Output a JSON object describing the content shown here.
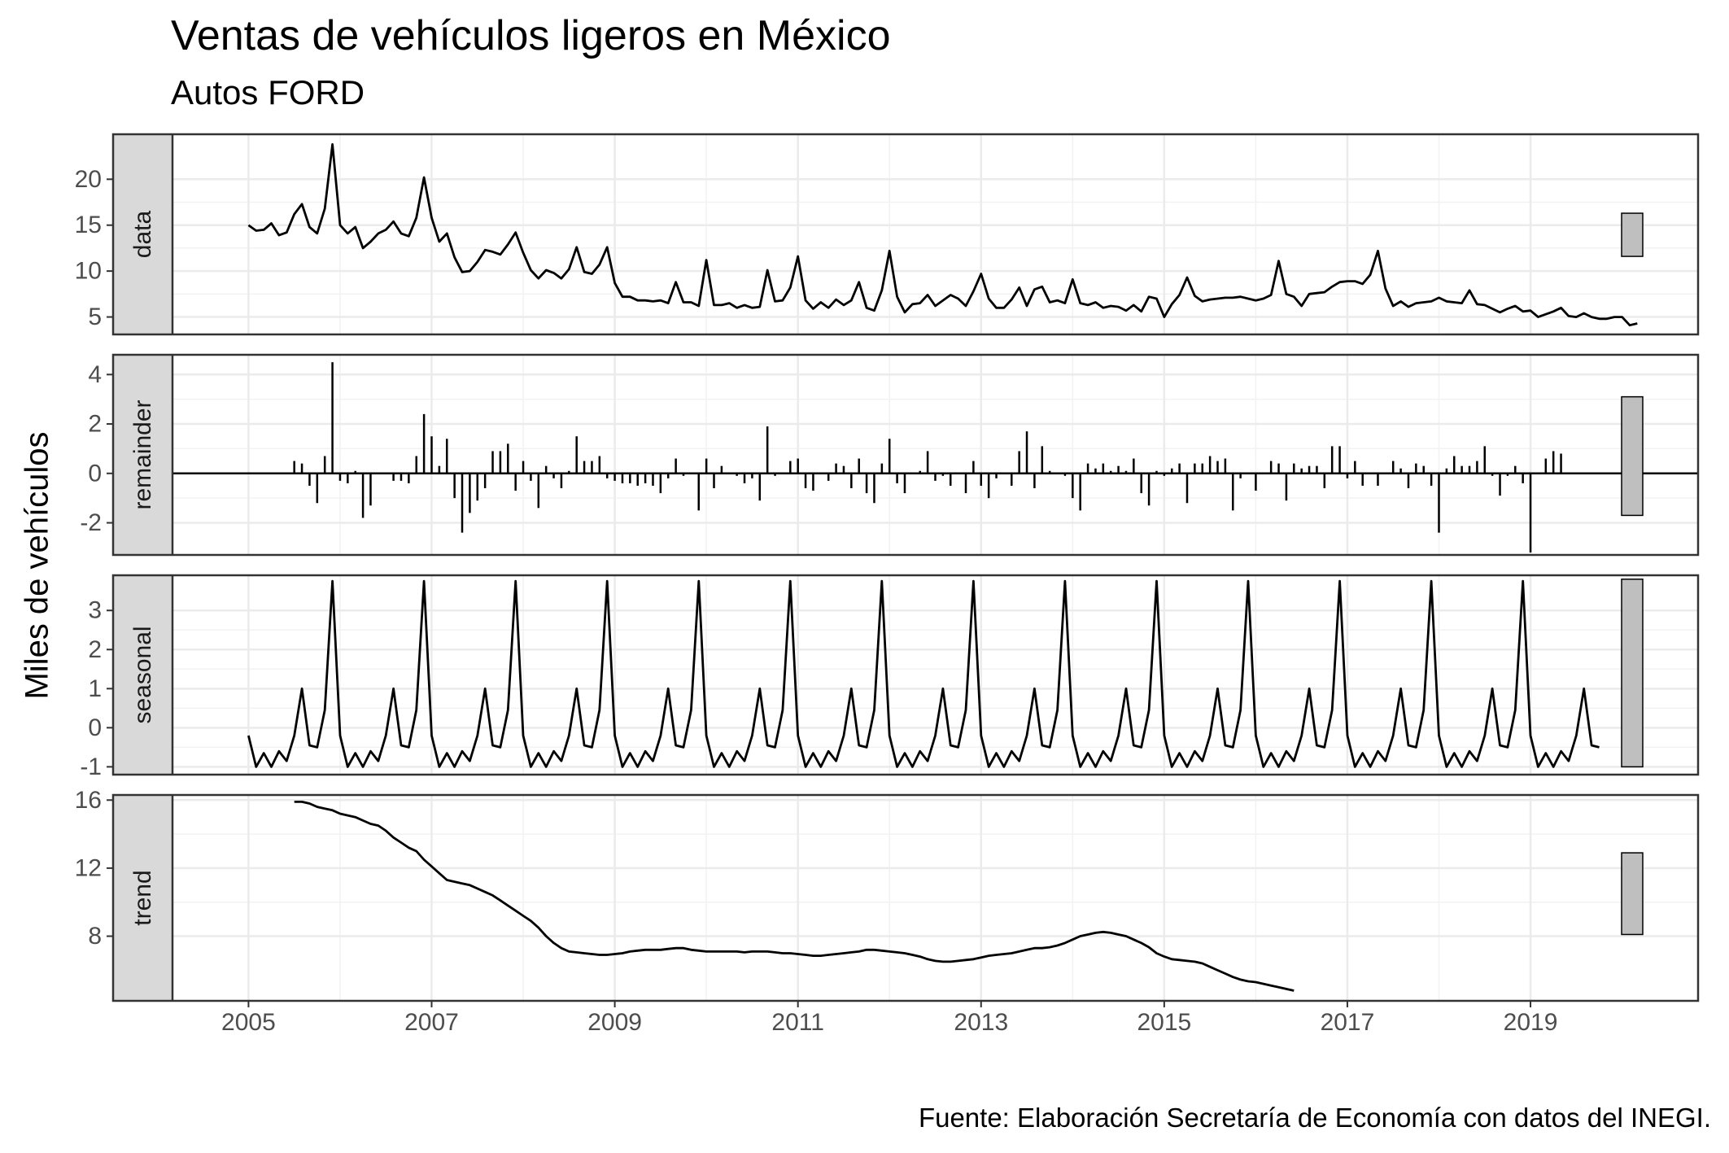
{
  "chart_data": {
    "type": "line",
    "title": "Ventas de vehículos ligeros en México",
    "subtitle": "Autos FORD",
    "ylabel": "Miles de vehículos",
    "xlabel": "",
    "caption": "Fuente: Elaboración Secretaría de Economía con datos del INEGI.",
    "x_start": 2005,
    "x_step": 0.0833333,
    "xlim": [
      2004.17,
      2020.83
    ],
    "x_ticks": [
      2005,
      2007,
      2009,
      2011,
      2013,
      2015,
      2017,
      2019
    ],
    "x_tick_labels": [
      "2005",
      "2007",
      "2009",
      "2011",
      "2013",
      "2015",
      "2017",
      "2019"
    ],
    "grid": true,
    "panels": [
      {
        "name": "data",
        "type": "line",
        "ylim": [
          3.1,
          24.9
        ],
        "y_ticks": [
          5,
          10,
          15,
          20
        ],
        "y_tick_labels": [
          "5",
          "10",
          "15",
          "20"
        ],
        "range_bar": [
          11.6,
          16.3
        ],
        "values": [
          15,
          14.4,
          14.5,
          15.2,
          13.9,
          14.2,
          16.2,
          17.3,
          14.8,
          14.1,
          16.8,
          23.8,
          15,
          14.1,
          14.8,
          12.5,
          13.2,
          14.1,
          14.5,
          15.4,
          14.1,
          13.8,
          15.8,
          20.2,
          15.8,
          13.2,
          14.1,
          11.5,
          9.9,
          10.0,
          11.0,
          12.3,
          12.1,
          11.8,
          12.9,
          14.2,
          12.0,
          10.1,
          9.2,
          10.1,
          9.8,
          9.2,
          10.2,
          12.6,
          9.9,
          9.7,
          10.7,
          12.6,
          8.7,
          7.2,
          7.2,
          6.8,
          6.8,
          6.7,
          6.8,
          6.5,
          8.8,
          6.6,
          6.6,
          6.2,
          11.2,
          6.3,
          6.3,
          6.5,
          6.0,
          6.3,
          6.0,
          6.1,
          10.1,
          6.7,
          6.8,
          8.2,
          11.6,
          6.8,
          5.9,
          6.6,
          6.0,
          6.9,
          6.3,
          6.8,
          8.8,
          6.0,
          5.7,
          7.9,
          12.2,
          7.2,
          5.5,
          6.4,
          6.5,
          7.4,
          6.2,
          6.8,
          7.4,
          7.0,
          6.2,
          7.8,
          9.7,
          7.0,
          6.0,
          6.0,
          6.9,
          8.2,
          6.2,
          8.0,
          8.3,
          6.6,
          6.8,
          6.5,
          9.1,
          6.5,
          6.3,
          6.6,
          6.0,
          6.2,
          6.1,
          5.7,
          6.3,
          5.6,
          7.2,
          7.0,
          5.0,
          6.4,
          7.4,
          9.3,
          7.3,
          6.7,
          6.9,
          7.0,
          7.1,
          7.1,
          7.2,
          7.0,
          6.8,
          7.0,
          7.4,
          11.1,
          7.5,
          7.2,
          6.2,
          7.5,
          7.6,
          7.7,
          8.3,
          8.8,
          8.9,
          8.9,
          8.6,
          9.6,
          12.2,
          8.1,
          6.2,
          6.7,
          6.1,
          6.5,
          6.6,
          6.7,
          7.1,
          6.7,
          6.6,
          6.5,
          7.9,
          6.4,
          6.3,
          5.9,
          5.5,
          5.9,
          6.2,
          5.6,
          5.7,
          5.0,
          5.3,
          5.6,
          6.0,
          5.1,
          5.0,
          5.4,
          5.0,
          4.8,
          4.8,
          5.0,
          5.0,
          4.1,
          4.3
        ]
      },
      {
        "name": "remainder",
        "type": "bar",
        "ylim": [
          -3.3,
          4.8
        ],
        "y_ticks": [
          -2,
          0,
          2,
          4
        ],
        "y_tick_labels": [
          "-2",
          "0",
          "2",
          "4"
        ],
        "range_bar": [
          -1.7,
          3.1
        ],
        "values": [
          null,
          null,
          null,
          null,
          null,
          null,
          0.5,
          0.4,
          -0.5,
          -1.2,
          0.7,
          4.5,
          -0.3,
          -0.4,
          0.1,
          -1.8,
          -1.3,
          0.0,
          0.0,
          -0.3,
          -0.3,
          -0.4,
          0.7,
          2.4,
          1.5,
          0.3,
          1.4,
          -1.0,
          -2.4,
          -1.6,
          -1.1,
          -0.6,
          0.9,
          0.9,
          1.2,
          -0.7,
          0.5,
          -0.3,
          -1.4,
          0.3,
          -0.2,
          -0.6,
          0.1,
          1.5,
          0.5,
          0.5,
          0.7,
          -0.2,
          -0.3,
          -0.4,
          -0.4,
          -0.5,
          -0.4,
          -0.5,
          -0.8,
          -0.2,
          0.6,
          -0.1,
          0.0,
          -1.5,
          0.6,
          -0.6,
          0.3,
          0.0,
          -0.1,
          -0.4,
          -0.2,
          -1.1,
          1.9,
          -0.1,
          0.0,
          0.5,
          0.6,
          -0.6,
          -0.7,
          0.0,
          -0.3,
          0.4,
          0.3,
          -0.6,
          0.6,
          -0.8,
          -1.2,
          0.4,
          1.4,
          -0.4,
          -0.8,
          0.0,
          0.1,
          0.9,
          -0.3,
          -0.1,
          -0.5,
          0.0,
          -0.8,
          0.5,
          -0.5,
          -1.0,
          -0.2,
          0.0,
          -0.5,
          0.9,
          1.7,
          -0.6,
          1.1,
          0.1,
          0.0,
          -0.1,
          -1.0,
          -1.5,
          0.4,
          0.2,
          0.4,
          0.1,
          0.3,
          0.1,
          0.6,
          -0.8,
          -1.3,
          0.1,
          -0.1,
          0.2,
          0.4,
          -1.2,
          0.4,
          0.4,
          0.7,
          0.5,
          0.6,
          -1.5,
          -0.2,
          0.0,
          -0.7,
          0.0,
          0.5,
          0.4,
          -1.1,
          0.4,
          0.2,
          0.3,
          0.3,
          -0.6,
          1.1,
          1.1,
          -0.2,
          0.5,
          -0.5,
          0.0,
          -0.5,
          0.0,
          0.5,
          0.2,
          -0.6,
          0.4,
          0.3,
          -0.5,
          -2.4,
          0.2,
          0.7,
          0.3,
          0.3,
          0.5,
          1.1,
          -0.1,
          -0.9,
          -0.1,
          0.3,
          -0.4,
          -3.2,
          0.0,
          0.6,
          0.9,
          0.8,
          null,
          null,
          null,
          null,
          null,
          null
        ]
      },
      {
        "name": "seasonal",
        "type": "line",
        "ylim": [
          -1.2,
          3.9
        ],
        "y_ticks": [
          -1,
          0,
          1,
          2,
          3
        ],
        "y_tick_labels": [
          "-1",
          "0",
          "1",
          "2",
          "3"
        ],
        "range_bar": [
          -1.0,
          3.8
        ],
        "pattern": [
          -0.2,
          -1.0,
          -0.65,
          -1.0,
          -0.6,
          -0.85,
          -0.2,
          1.0,
          -0.45,
          -0.5,
          0.45,
          3.75
        ]
      },
      {
        "name": "trend",
        "type": "line",
        "ylim": [
          4.2,
          16.3
        ],
        "y_ticks": [
          8,
          12,
          16
        ],
        "y_tick_labels": [
          "8",
          "12",
          "16"
        ],
        "range_bar": [
          8.1,
          12.9
        ],
        "values": [
          15.9,
          15.9,
          15.8,
          15.6,
          15.5,
          15.4,
          15.2,
          15.1,
          15.0,
          14.8,
          14.6,
          14.5,
          14.2,
          13.8,
          13.5,
          13.2,
          13.0,
          12.5,
          12.1,
          11.7,
          11.3,
          11.2,
          11.1,
          11.0,
          10.8,
          10.6,
          10.4,
          10.1,
          9.8,
          9.5,
          9.2,
          8.9,
          8.5,
          8.0,
          7.6,
          7.3,
          7.1,
          7.05,
          7.0,
          6.95,
          6.9,
          6.9,
          6.95,
          7.0,
          7.1,
          7.15,
          7.2,
          7.2,
          7.2,
          7.25,
          7.3,
          7.3,
          7.2,
          7.15,
          7.1,
          7.1,
          7.1,
          7.1,
          7.1,
          7.05,
          7.1,
          7.1,
          7.1,
          7.05,
          7.0,
          7.0,
          6.95,
          6.9,
          6.85,
          6.85,
          6.9,
          6.95,
          7.0,
          7.05,
          7.1,
          7.2,
          7.2,
          7.15,
          7.1,
          7.05,
          7.0,
          6.9,
          6.8,
          6.65,
          6.55,
          6.5,
          6.5,
          6.55,
          6.6,
          6.65,
          6.75,
          6.85,
          6.9,
          6.95,
          7.0,
          7.1,
          7.2,
          7.3,
          7.3,
          7.35,
          7.45,
          7.6,
          7.8,
          8.0,
          8.1,
          8.2,
          8.25,
          8.2,
          8.1,
          8.0,
          7.8,
          7.6,
          7.35,
          7.0,
          6.8,
          6.65,
          6.6,
          6.55,
          6.5,
          6.4,
          6.2,
          6.0,
          5.8,
          5.6,
          5.45,
          5.35,
          5.3,
          5.2,
          5.1,
          5.0,
          4.9,
          4.8
        ]
      }
    ]
  }
}
